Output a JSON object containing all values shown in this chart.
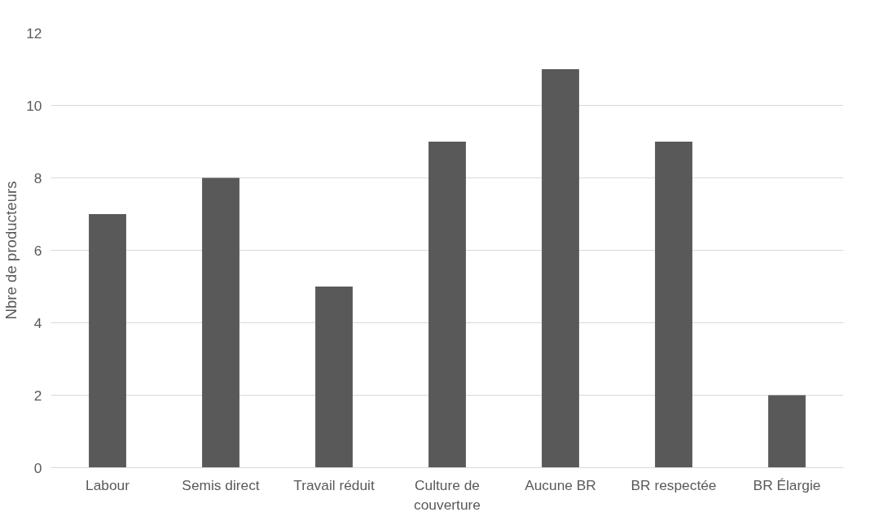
{
  "chart_data": {
    "type": "bar",
    "ylabel": "Nbre de producteurs",
    "categories": [
      "Labour",
      "Semis direct",
      "Travail réduit",
      "Culture de couverture",
      "Aucune BR",
      "BR respectée",
      "BR Élargie"
    ],
    "values": [
      7,
      8,
      5,
      9,
      11,
      9,
      2
    ],
    "color": "#595959",
    "ylim": [
      0,
      12
    ],
    "yticks": [
      0,
      2,
      4,
      6,
      8,
      10,
      12
    ],
    "grid": "y"
  }
}
